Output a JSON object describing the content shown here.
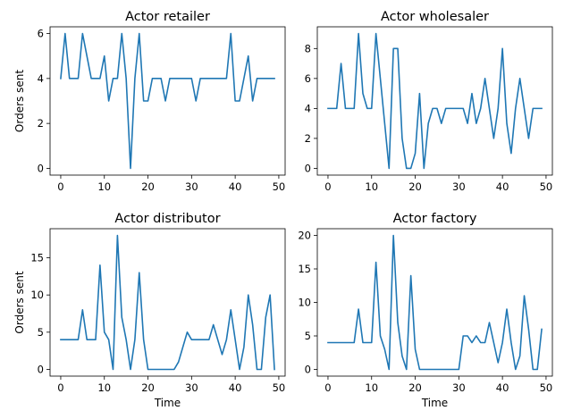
{
  "chart_data": [
    {
      "type": "line",
      "title": "Actor retailer",
      "xlabel": "",
      "ylabel": "Orders sent",
      "xlim": [
        -2.45,
        51.45
      ],
      "ylim": [
        -0.3,
        6.3
      ],
      "xticks": [
        0,
        10,
        20,
        30,
        40,
        50
      ],
      "yticks": [
        0,
        2,
        4,
        6
      ],
      "grid": false,
      "color": "#1f77b4",
      "x": [
        0,
        1,
        2,
        3,
        4,
        5,
        6,
        7,
        8,
        9,
        10,
        11,
        12,
        13,
        14,
        15,
        16,
        17,
        18,
        19,
        20,
        21,
        22,
        23,
        24,
        25,
        26,
        27,
        28,
        29,
        30,
        31,
        32,
        33,
        34,
        35,
        36,
        37,
        38,
        39,
        40,
        41,
        42,
        43,
        44,
        45,
        46,
        47,
        48,
        49
      ],
      "y": [
        4,
        6,
        4,
        4,
        4,
        6,
        5,
        4,
        4,
        4,
        5,
        3,
        4,
        4,
        6,
        4,
        0,
        4,
        6,
        3,
        3,
        4,
        4,
        4,
        3,
        4,
        4,
        4,
        4,
        4,
        4,
        3,
        4,
        4,
        4,
        4,
        4,
        4,
        4,
        6,
        3,
        3,
        4,
        5,
        3,
        4,
        4,
        4,
        4,
        4
      ]
    },
    {
      "type": "line",
      "title": "Actor wholesaler",
      "xlabel": "",
      "ylabel": "",
      "xlim": [
        -2.45,
        51.45
      ],
      "ylim": [
        -0.45,
        9.45
      ],
      "xticks": [
        0,
        10,
        20,
        30,
        40,
        50
      ],
      "yticks": [
        0,
        2,
        4,
        6,
        8
      ],
      "grid": false,
      "color": "#1f77b4",
      "x": [
        0,
        1,
        2,
        3,
        4,
        5,
        6,
        7,
        8,
        9,
        10,
        11,
        12,
        13,
        14,
        15,
        16,
        17,
        18,
        19,
        20,
        21,
        22,
        23,
        24,
        25,
        26,
        27,
        28,
        29,
        30,
        31,
        32,
        33,
        34,
        35,
        36,
        37,
        38,
        39,
        40,
        41,
        42,
        43,
        44,
        45,
        46,
        47,
        48,
        49
      ],
      "y": [
        4,
        4,
        4,
        7,
        4,
        4,
        4,
        9,
        5,
        4,
        4,
        9,
        6,
        3,
        0,
        8,
        8,
        2,
        0,
        0,
        1,
        5,
        0,
        3,
        4,
        4,
        3,
        4,
        4,
        4,
        4,
        4,
        3,
        5,
        3,
        4,
        6,
        4,
        2,
        4,
        8,
        3,
        1,
        4,
        6,
        4,
        2,
        4,
        4,
        4
      ]
    },
    {
      "type": "line",
      "title": "Actor distributor",
      "xlabel": "Time",
      "ylabel": "Orders sent",
      "xlim": [
        -2.45,
        51.45
      ],
      "ylim": [
        -0.9,
        18.9
      ],
      "xticks": [
        0,
        10,
        20,
        30,
        40,
        50
      ],
      "yticks": [
        0,
        5,
        10,
        15
      ],
      "grid": false,
      "color": "#1f77b4",
      "x": [
        0,
        1,
        2,
        3,
        4,
        5,
        6,
        7,
        8,
        9,
        10,
        11,
        12,
        13,
        14,
        15,
        16,
        17,
        18,
        19,
        20,
        21,
        22,
        23,
        24,
        25,
        26,
        27,
        28,
        29,
        30,
        31,
        32,
        33,
        34,
        35,
        36,
        37,
        38,
        39,
        40,
        41,
        42,
        43,
        44,
        45,
        46,
        47,
        48,
        49
      ],
      "y": [
        4,
        4,
        4,
        4,
        4,
        8,
        4,
        4,
        4,
        14,
        5,
        4,
        0,
        18,
        7,
        4,
        0,
        4,
        13,
        4,
        0,
        0,
        0,
        0,
        0,
        0,
        0,
        1,
        3,
        5,
        4,
        4,
        4,
        4,
        4,
        6,
        4,
        2,
        4,
        8,
        4,
        0,
        3,
        10,
        6,
        0,
        0,
        7,
        10,
        0
      ]
    },
    {
      "type": "line",
      "title": "Actor factory",
      "xlabel": "Time",
      "ylabel": "",
      "xlim": [
        -2.45,
        51.45
      ],
      "ylim": [
        -1.0,
        21.0
      ],
      "xticks": [
        0,
        10,
        20,
        30,
        40,
        50
      ],
      "yticks": [
        0,
        5,
        10,
        15,
        20
      ],
      "grid": false,
      "color": "#1f77b4",
      "x": [
        0,
        1,
        2,
        3,
        4,
        5,
        6,
        7,
        8,
        9,
        10,
        11,
        12,
        13,
        14,
        15,
        16,
        17,
        18,
        19,
        20,
        21,
        22,
        23,
        24,
        25,
        26,
        27,
        28,
        29,
        30,
        31,
        32,
        33,
        34,
        35,
        36,
        37,
        38,
        39,
        40,
        41,
        42,
        43,
        44,
        45,
        46,
        47,
        48,
        49
      ],
      "y": [
        4,
        4,
        4,
        4,
        4,
        4,
        4,
        9,
        4,
        4,
        4,
        16,
        5,
        3,
        0,
        20,
        7,
        2,
        0,
        14,
        3,
        0,
        0,
        0,
        0,
        0,
        0,
        0,
        0,
        0,
        0,
        5,
        5,
        4,
        5,
        4,
        4,
        7,
        4,
        1,
        4,
        9,
        4,
        0,
        2,
        11,
        6,
        0,
        0,
        6
      ]
    }
  ]
}
